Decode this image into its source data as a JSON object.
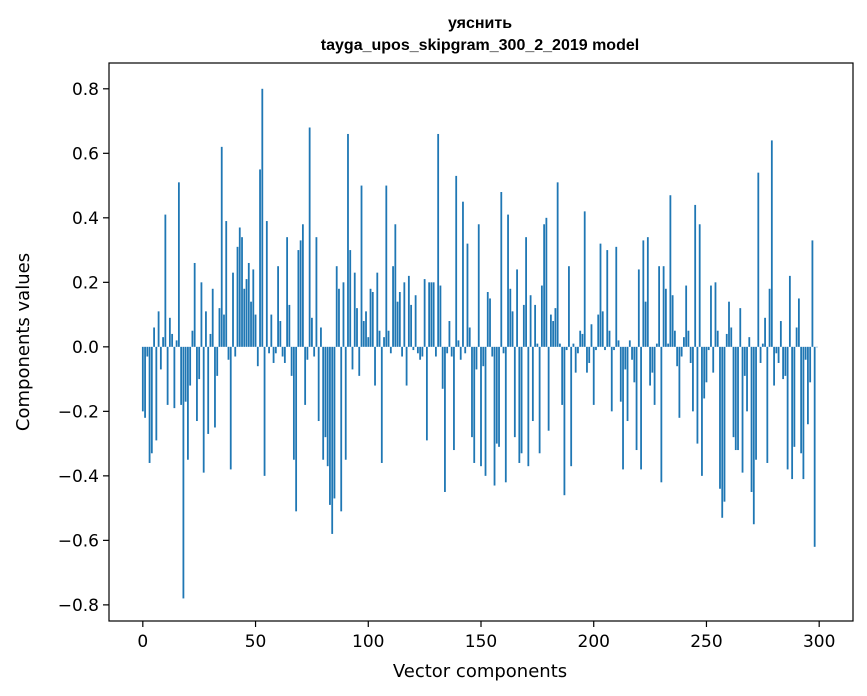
{
  "chart_data": {
    "type": "bar",
    "title": "уяснить",
    "subtitle": "tayga_upos_skipgram_300_2_2019 model",
    "xlabel": "Vector components",
    "ylabel": "Components values",
    "xlim": [
      -15,
      315
    ],
    "ylim": [
      -0.85,
      0.88
    ],
    "xticks": [
      0,
      50,
      100,
      150,
      200,
      250,
      300
    ],
    "yticks": [
      -0.8,
      -0.6,
      -0.4,
      -0.2,
      0.0,
      0.2,
      0.4,
      0.6,
      0.8
    ],
    "ytick_labels": [
      "−0.8",
      "−0.6",
      "−0.4",
      "−0.2",
      "0.0",
      "0.2",
      "0.4",
      "0.6",
      "0.8"
    ],
    "grid": false,
    "bar_color": "#1f77b4",
    "values": [
      -0.2,
      -0.22,
      -0.03,
      -0.36,
      -0.33,
      0.06,
      -0.29,
      0.11,
      -0.07,
      0.03,
      0.41,
      -0.18,
      0.09,
      0.04,
      -0.19,
      0.02,
      0.51,
      -0.18,
      -0.78,
      -0.17,
      -0.35,
      -0.12,
      0.05,
      0.26,
      -0.23,
      -0.1,
      0.2,
      -0.39,
      0.11,
      -0.27,
      0.04,
      0.18,
      -0.25,
      -0.09,
      0.12,
      0.62,
      0.1,
      0.39,
      -0.04,
      -0.38,
      0.23,
      -0.03,
      0.31,
      0.37,
      0.34,
      0.18,
      0.21,
      0.26,
      0.14,
      0.24,
      0.1,
      -0.06,
      0.55,
      0.8,
      -0.4,
      0.39,
      -0.02,
      0.1,
      -0.05,
      -0.02,
      0.25,
      0.08,
      -0.03,
      -0.05,
      0.34,
      0.13,
      -0.09,
      -0.35,
      -0.51,
      0.3,
      0.33,
      0.38,
      -0.18,
      -0.04,
      0.68,
      0.09,
      -0.03,
      0.34,
      -0.23,
      0.06,
      -0.35,
      -0.28,
      -0.37,
      -0.49,
      -0.58,
      -0.47,
      0.25,
      0.18,
      -0.51,
      0.2,
      -0.35,
      0.66,
      0.3,
      -0.07,
      0.23,
      0.12,
      -0.09,
      0.5,
      0.08,
      0.11,
      0.03,
      0.18,
      0.17,
      -0.12,
      0.23,
      0.05,
      -0.36,
      0.03,
      0.5,
      0.05,
      -0.02,
      0.25,
      0.38,
      0.14,
      0.17,
      -0.03,
      0.2,
      -0.12,
      0.22,
      0.13,
      -0.01,
      0.16,
      -0.02,
      -0.04,
      -0.03,
      0.21,
      -0.29,
      0.2,
      0.2,
      0.2,
      -0.03,
      0.66,
      0.19,
      -0.13,
      -0.45,
      -0.02,
      0.08,
      -0.03,
      -0.32,
      0.53,
      0.02,
      -0.04,
      0.45,
      -0.02,
      0.32,
      0.06,
      -0.28,
      -0.36,
      -0.07,
      0.38,
      -0.37,
      -0.06,
      -0.4,
      0.17,
      0.15,
      -0.03,
      -0.43,
      -0.3,
      -0.31,
      0.48,
      -0.02,
      -0.42,
      0.41,
      0.18,
      0.11,
      -0.28,
      0.24,
      -0.36,
      -0.33,
      0.13,
      0.34,
      -0.37,
      0.16,
      -0.23,
      0.13,
      0.01,
      -0.33,
      0.19,
      0.38,
      0.4,
      -0.26,
      0.1,
      0.08,
      0.12,
      0.51,
      0.01,
      -0.18,
      -0.46,
      -0.01,
      0.25,
      -0.37,
      0.01,
      -0.08,
      -0.02,
      0.05,
      0.04,
      0.42,
      -0.08,
      -0.05,
      0.07,
      -0.18,
      -0.01,
      0.1,
      0.32,
      0.11,
      -0.01,
      0.3,
      0.05,
      -0.2,
      -0.01,
      0.31,
      0.02,
      -0.17,
      -0.38,
      -0.07,
      -0.23,
      0.02,
      -0.04,
      -0.11,
      -0.32,
      0.24,
      -0.38,
      0.33,
      0.14,
      0.34,
      -0.12,
      -0.08,
      -0.18,
      0.01,
      0.25,
      -0.42,
      0.25,
      0.18,
      0.01,
      0.47,
      0.16,
      0.05,
      -0.06,
      -0.22,
      -0.03,
      0.03,
      0.19,
      0.05,
      -0.05,
      -0.2,
      0.44,
      -0.3,
      0.38,
      -0.4,
      -0.16,
      -0.11,
      -0.01,
      0.19,
      -0.08,
      0.2,
      0.05,
      -0.44,
      -0.53,
      -0.48,
      0.04,
      0.14,
      0.06,
      -0.28,
      -0.32,
      -0.32,
      0.12,
      -0.39,
      -0.09,
      -0.2,
      0.03,
      -0.45,
      -0.55,
      -0.35,
      0.54,
      -0.05,
      0.01,
      0.09,
      -0.36,
      0.18,
      0.64,
      -0.12,
      -0.02,
      -0.05,
      0.08,
      -0.1,
      -0.09,
      -0.38,
      0.22,
      -0.41,
      -0.31,
      0.06,
      0.15,
      -0.33,
      -0.41,
      -0.04,
      -0.24,
      -0.11,
      0.33,
      -0.62,
      0.0
    ]
  }
}
